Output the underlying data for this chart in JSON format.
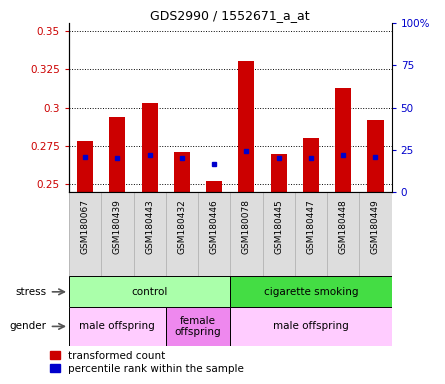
{
  "title": "GDS2990 / 1552671_a_at",
  "samples": [
    "GSM180067",
    "GSM180439",
    "GSM180443",
    "GSM180432",
    "GSM180446",
    "GSM180078",
    "GSM180445",
    "GSM180447",
    "GSM180448",
    "GSM180449"
  ],
  "red_values": [
    0.278,
    0.294,
    0.303,
    0.271,
    0.252,
    0.33,
    0.27,
    0.28,
    0.313,
    0.292
  ],
  "blue_values": [
    0.268,
    0.267,
    0.269,
    0.267,
    0.263,
    0.272,
    0.267,
    0.267,
    0.269,
    0.268
  ],
  "ylim_left": [
    0.245,
    0.355
  ],
  "ylim_right": [
    0,
    100
  ],
  "yticks_left": [
    0.25,
    0.275,
    0.3,
    0.325,
    0.35
  ],
  "yticks_right": [
    0,
    25,
    50,
    75,
    100
  ],
  "ytick_labels_left": [
    "0.25",
    "0.275",
    "0.3",
    "0.325",
    "0.35"
  ],
  "ytick_labels_right": [
    "0",
    "25",
    "50",
    "75",
    "100%"
  ],
  "red_color": "#cc0000",
  "blue_color": "#0000cc",
  "bar_bottom": 0.245,
  "stress_groups": [
    {
      "label": "control",
      "start": 0,
      "end": 5,
      "color": "#aaffaa"
    },
    {
      "label": "cigarette smoking",
      "start": 5,
      "end": 10,
      "color": "#44dd44"
    }
  ],
  "gender_groups": [
    {
      "label": "male offspring",
      "start": 0,
      "end": 3,
      "color": "#ffccff"
    },
    {
      "label": "female\noffspring",
      "start": 3,
      "end": 5,
      "color": "#ee88ee"
    },
    {
      "label": "male offspring",
      "start": 5,
      "end": 10,
      "color": "#ffccff"
    }
  ],
  "stress_label": "stress",
  "gender_label": "gender",
  "legend_red": "transformed count",
  "legend_blue": "percentile rank within the sample"
}
